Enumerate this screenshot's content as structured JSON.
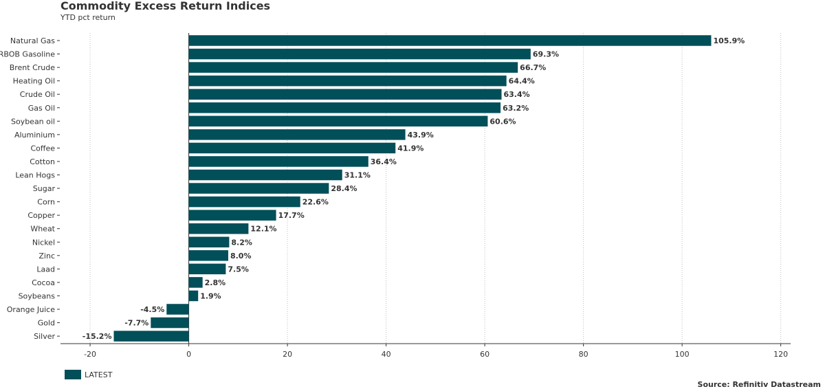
{
  "chart_data": {
    "type": "bar",
    "orientation": "horizontal",
    "title": "Commodity Excess Return Indices",
    "subtitle": "YTD pct return",
    "categories": [
      "Natural Gas",
      "RBOB Gasoline",
      "Brent Crude",
      "Heating Oil",
      "Crude Oil",
      "Gas Oil",
      "Soybean oil",
      "Aluminium",
      "Coffee",
      "Cotton",
      "Lean Hogs",
      "Sugar",
      "Corn",
      "Copper",
      "Wheat",
      "Nickel",
      "Zinc",
      "Laad",
      "Cocoa",
      "Soybeans",
      "Orange Juice",
      "Gold",
      "Silver"
    ],
    "series": [
      {
        "name": "LATEST",
        "values": [
          105.9,
          69.3,
          66.7,
          64.4,
          63.4,
          63.2,
          60.6,
          43.9,
          41.9,
          36.4,
          31.1,
          28.4,
          22.6,
          17.7,
          12.1,
          8.2,
          8.0,
          7.5,
          2.8,
          1.9,
          -4.5,
          -7.7,
          -15.2
        ],
        "labels": [
          "105.9%",
          "69.3%",
          "66.7%",
          "64.4%",
          "63.4%",
          "63.2%",
          "60.6%",
          "43.9%",
          "41.9%",
          "36.4%",
          "31.1%",
          "28.4%",
          "22.6%",
          "17.7%",
          "12.1%",
          "8.2%",
          "8.0%",
          "7.5%",
          "2.8%",
          "1.9%",
          "-4.5%",
          "-7.7%",
          "-15.2%"
        ]
      }
    ],
    "xlim": [
      -26,
      122
    ],
    "xticks": [
      -20,
      0,
      20,
      40,
      60,
      80,
      100,
      120
    ],
    "grid": "vertical-dotted",
    "legend": "bottom-left",
    "colors": {
      "bar": "#014f59",
      "grid": "#bbbbbb",
      "axis": "#333333"
    }
  },
  "footer": {
    "source": "Source: Refinitiv Datastream"
  }
}
